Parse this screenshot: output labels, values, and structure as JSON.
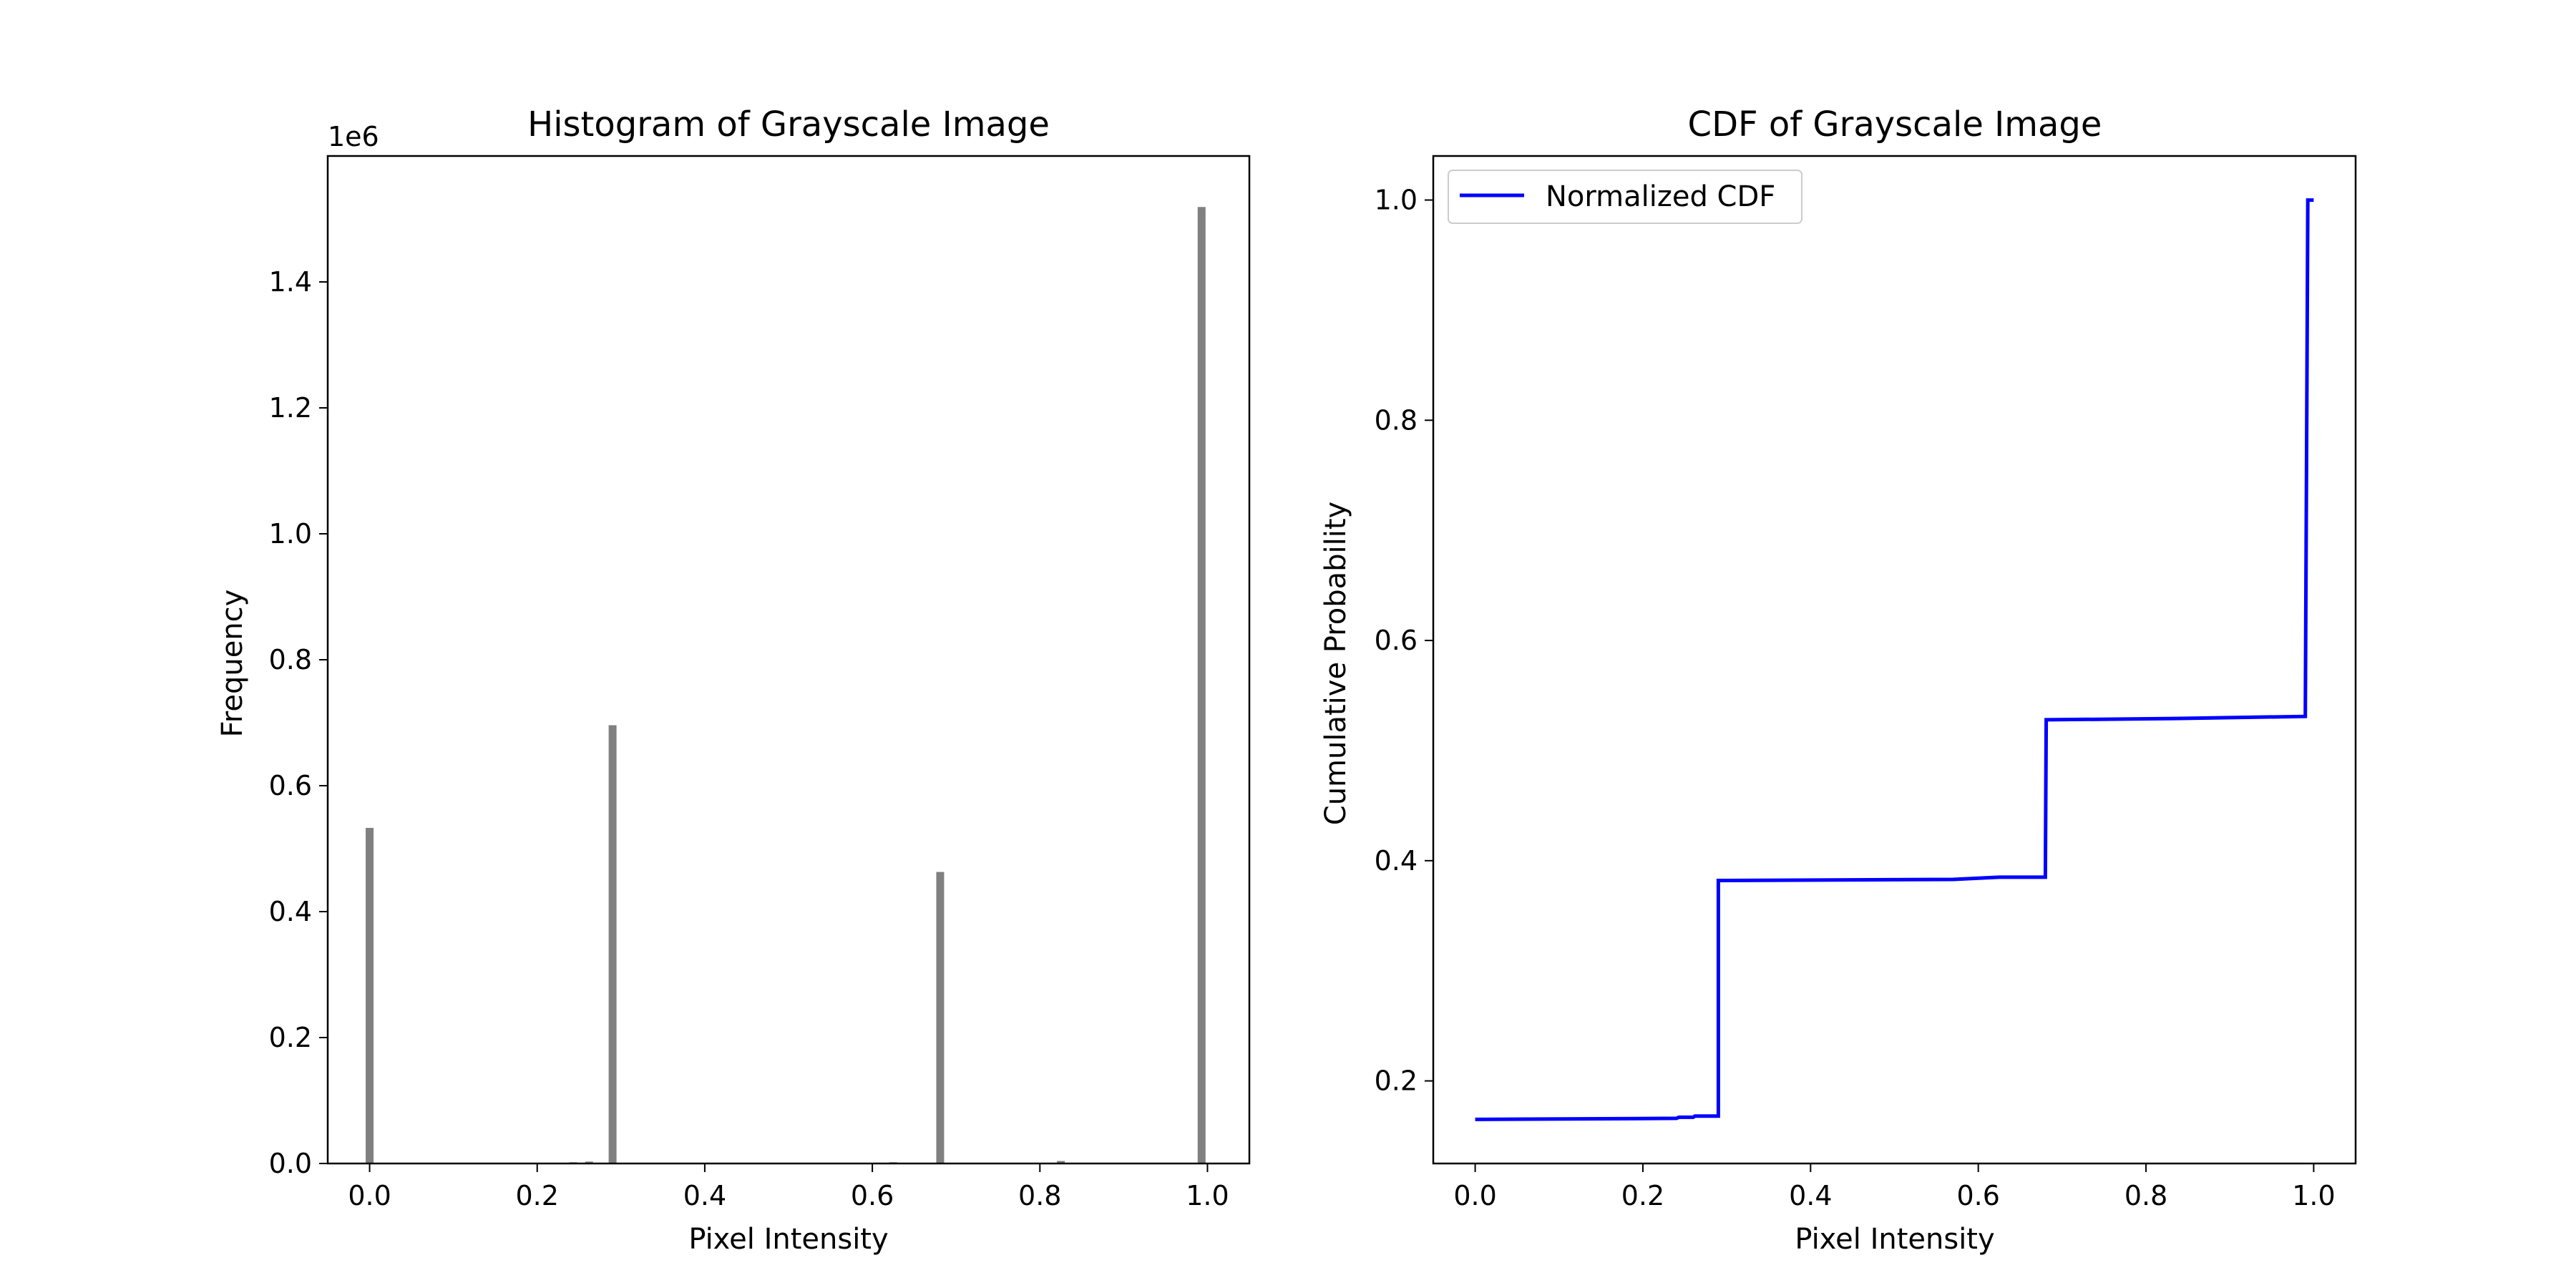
{
  "chart_data": [
    {
      "type": "bar",
      "title": "Histogram of Grayscale Image",
      "xlabel": "Pixel Intensity",
      "ylabel": "Frequency",
      "y_offset_label": "1e6",
      "xlim": [
        -0.05,
        1.05
      ],
      "ylim": [
        0,
        1.6
      ],
      "xticks": [
        "0.0",
        "0.2",
        "0.4",
        "0.6",
        "0.8",
        "1.0"
      ],
      "yticks": [
        "0.0",
        "0.2",
        "0.4",
        "0.6",
        "0.8",
        "1.0",
        "1.2",
        "1.4"
      ],
      "bar_color": "#808080",
      "bars": [
        {
          "x": 0.0,
          "value": 0.533
        },
        {
          "x": 0.243,
          "value": 0.002
        },
        {
          "x": 0.262,
          "value": 0.003
        },
        {
          "x": 0.29,
          "value": 0.696
        },
        {
          "x": 0.57,
          "value": 0.001
        },
        {
          "x": 0.625,
          "value": 0.002
        },
        {
          "x": 0.681,
          "value": 0.463
        },
        {
          "x": 0.825,
          "value": 0.004
        },
        {
          "x": 0.993,
          "value": 1.519
        }
      ]
    },
    {
      "type": "line",
      "title": "CDF of Grayscale Image",
      "xlabel": "Pixel Intensity",
      "ylabel": "Cumulative Probability",
      "xlim": [
        -0.05,
        1.05
      ],
      "ylim": [
        0.125,
        1.04
      ],
      "xticks": [
        "0.0",
        "0.2",
        "0.4",
        "0.6",
        "0.8",
        "1.0"
      ],
      "yticks": [
        "0.2",
        "0.4",
        "0.6",
        "0.8",
        "1.0"
      ],
      "legend": "top-left",
      "series": [
        {
          "name": "Normalized CDF",
          "color": "#0000ff",
          "x": [
            0.0,
            0.24,
            0.243,
            0.26,
            0.262,
            0.29,
            0.29,
            0.57,
            0.625,
            0.68,
            0.681,
            0.825,
            0.99,
            0.993,
            1.0
          ],
          "y": [
            0.165,
            0.166,
            0.167,
            0.167,
            0.168,
            0.168,
            0.382,
            0.383,
            0.385,
            0.385,
            0.528,
            0.529,
            0.531,
            1.0,
            1.0
          ]
        }
      ]
    }
  ]
}
